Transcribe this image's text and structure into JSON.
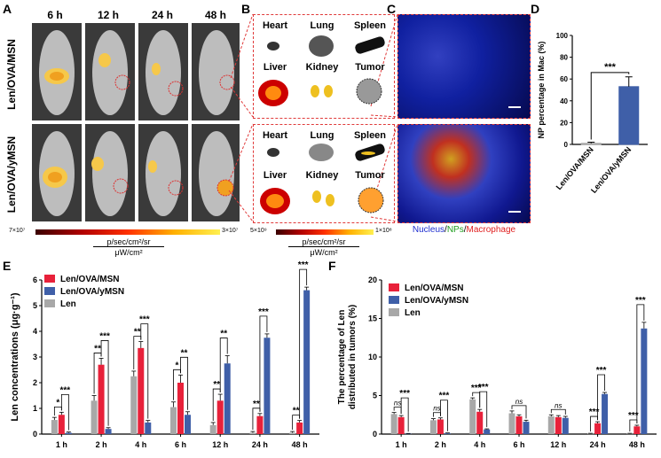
{
  "panel_labels": {
    "A": "A",
    "B": "B",
    "C": "C",
    "D": "D",
    "E": "E",
    "F": "F"
  },
  "panelA": {
    "timepoints": [
      "6 h",
      "12 h",
      "24 h",
      "48 h"
    ],
    "row_labels": [
      "Len/OVA/MSN",
      "Len/OVA/yMSN"
    ],
    "colorbar_min": "7×10⁷",
    "colorbar_max": "3×10⁷",
    "unit_top": "p/sec/cm²/sr",
    "unit_bottom": "μW/cm²"
  },
  "panelB": {
    "organs": [
      "Heart",
      "Lung",
      "Spleen",
      "Liver",
      "Kidney",
      "Tumor"
    ],
    "colorbar_min": "5×10⁹",
    "colorbar_max": "1×10⁸",
    "unit_top": "p/sec/cm²/sr",
    "unit_bottom": "μW/cm²"
  },
  "panelC": {
    "legend": {
      "nucleus": "Nucleus",
      "sep1": "/",
      "nps": "NPs",
      "sep2": "/",
      "mac": "Macrophage"
    }
  },
  "colors": {
    "red": "#e8213a",
    "blue": "#3f5fa8",
    "gray": "#a8a8a8",
    "dashed_red": "#e03a3a"
  },
  "chart_data": [
    {
      "panel": "D",
      "type": "bar",
      "categories": [
        "Len/OVA/MSN",
        "Len/OVA/yMSN"
      ],
      "values": [
        1,
        53
      ],
      "errors": [
        1,
        9
      ],
      "ylabel": "NP percentage in Mac (%)",
      "ylim": [
        0,
        100
      ],
      "yticks": [
        0,
        20,
        40,
        60,
        80,
        100
      ],
      "significance": "***",
      "bar_colors": [
        "#a8a8a8",
        "#3f5fa8"
      ]
    },
    {
      "panel": "E",
      "type": "bar",
      "categories": [
        "1 h",
        "2 h",
        "4 h",
        "6 h",
        "12 h",
        "24 h",
        "48 h"
      ],
      "series": [
        {
          "name": "Len",
          "values": [
            0.55,
            1.3,
            2.25,
            1.05,
            0.35,
            0.05,
            0.05
          ],
          "errors": [
            0.1,
            0.2,
            0.2,
            0.2,
            0.1,
            0.05,
            0.05
          ]
        },
        {
          "name": "Len/OVA/MSN",
          "values": [
            0.75,
            2.7,
            3.35,
            2.0,
            1.3,
            0.7,
            0.45
          ],
          "errors": [
            0.1,
            0.25,
            0.25,
            0.3,
            0.25,
            0.1,
            0.08
          ]
        },
        {
          "name": "Len/OVA/yMSN",
          "values": [
            0.05,
            0.2,
            0.45,
            0.75,
            2.75,
            3.75,
            5.6
          ],
          "errors": [
            0.03,
            0.05,
            0.08,
            0.12,
            0.3,
            0.15,
            0.12
          ]
        }
      ],
      "ylabel": "Len concentrations (μg·g⁻¹)",
      "ylim": [
        0,
        6
      ],
      "yticks": [
        0,
        1,
        2,
        3,
        4,
        5,
        6
      ],
      "legend_order": [
        "Len/OVA/MSN",
        "Len/OVA/yMSN",
        "Len"
      ],
      "significance": [
        {
          "group": 0,
          "pairs": [
            [
              "Len",
              "Len/OVA/MSN",
              "*"
            ],
            [
              "Len/OVA/MSN",
              "Len/OVA/yMSN",
              "***"
            ]
          ]
        },
        {
          "group": 1,
          "pairs": [
            [
              "Len",
              "Len/OVA/MSN",
              "**"
            ],
            [
              "Len/OVA/MSN",
              "Len/OVA/yMSN",
              "***"
            ]
          ]
        },
        {
          "group": 2,
          "pairs": [
            [
              "Len",
              "Len/OVA/MSN",
              "**"
            ],
            [
              "Len/OVA/MSN",
              "Len/OVA/yMSN",
              "***"
            ]
          ]
        },
        {
          "group": 3,
          "pairs": [
            [
              "Len",
              "Len/OVA/MSN",
              "*"
            ],
            [
              "Len/OVA/MSN",
              "Len/OVA/yMSN",
              "**"
            ]
          ]
        },
        {
          "group": 4,
          "pairs": [
            [
              "Len",
              "Len/OVA/MSN",
              "**"
            ],
            [
              "Len/OVA/MSN",
              "Len/OVA/yMSN",
              "**"
            ]
          ]
        },
        {
          "group": 5,
          "pairs": [
            [
              "Len",
              "Len/OVA/MSN",
              "**"
            ],
            [
              "Len/OVA/MSN",
              "Len/OVA/yMSN",
              "***"
            ]
          ]
        },
        {
          "group": 6,
          "pairs": [
            [
              "Len",
              "Len/OVA/MSN",
              "**"
            ],
            [
              "Len/OVA/MSN",
              "Len/OVA/yMSN",
              "***"
            ]
          ]
        }
      ]
    },
    {
      "panel": "F",
      "type": "bar",
      "categories": [
        "1 h",
        "2 h",
        "4 h",
        "6 h",
        "12 h",
        "24 h",
        "48 h"
      ],
      "series": [
        {
          "name": "Len",
          "values": [
            2.6,
            1.8,
            4.5,
            2.7,
            2.3,
            0.05,
            0.05
          ],
          "errors": [
            0.2,
            0.2,
            0.2,
            0.3,
            0.2,
            0.05,
            0.05
          ]
        },
        {
          "name": "Len/OVA/MSN",
          "values": [
            2.2,
            1.9,
            2.9,
            2.3,
            2.2,
            1.4,
            1.0
          ],
          "errors": [
            0.2,
            0.2,
            0.3,
            0.2,
            0.2,
            0.2,
            0.15
          ]
        },
        {
          "name": "Len/OVA/yMSN",
          "values": [
            0.05,
            0.1,
            0.6,
            1.6,
            2.1,
            5.2,
            13.7
          ],
          "errors": [
            0.03,
            0.05,
            0.08,
            0.2,
            0.2,
            0.2,
            0.8
          ]
        }
      ],
      "ylabel": "The percentage of Len distributed in tumors (%)",
      "ylim": [
        0,
        20
      ],
      "yticks": [
        0,
        5,
        10,
        15,
        20
      ],
      "legend_order": [
        "Len/OVA/MSN",
        "Len/OVA/yMSN",
        "Len"
      ],
      "significance": [
        {
          "group": 0,
          "pairs": [
            [
              "Len",
              "Len/OVA/MSN",
              "ns"
            ],
            [
              "Len/OVA/MSN",
              "Len/OVA/yMSN",
              "***"
            ]
          ]
        },
        {
          "group": 1,
          "pairs": [
            [
              "Len",
              "Len/OVA/MSN",
              "ns"
            ],
            [
              "Len/OVA/MSN",
              "Len/OVA/yMSN",
              "***"
            ]
          ]
        },
        {
          "group": 2,
          "pairs": [
            [
              "Len",
              "Len/OVA/MSN",
              "***"
            ],
            [
              "Len/OVA/MSN",
              "Len/OVA/yMSN",
              "***"
            ]
          ]
        },
        {
          "group": 3,
          "pairs": [
            [
              "Len",
              "Len/OVA/yMSN",
              "ns"
            ]
          ]
        },
        {
          "group": 4,
          "pairs": [
            [
              "Len",
              "Len/OVA/yMSN",
              "ns"
            ]
          ]
        },
        {
          "group": 5,
          "pairs": [
            [
              "Len",
              "Len/OVA/MSN",
              "***"
            ],
            [
              "Len/OVA/MSN",
              "Len/OVA/yMSN",
              "***"
            ]
          ]
        },
        {
          "group": 6,
          "pairs": [
            [
              "Len",
              "Len/OVA/MSN",
              "***"
            ],
            [
              "Len/OVA/MSN",
              "Len/OVA/yMSN",
              "***"
            ]
          ]
        }
      ]
    }
  ]
}
